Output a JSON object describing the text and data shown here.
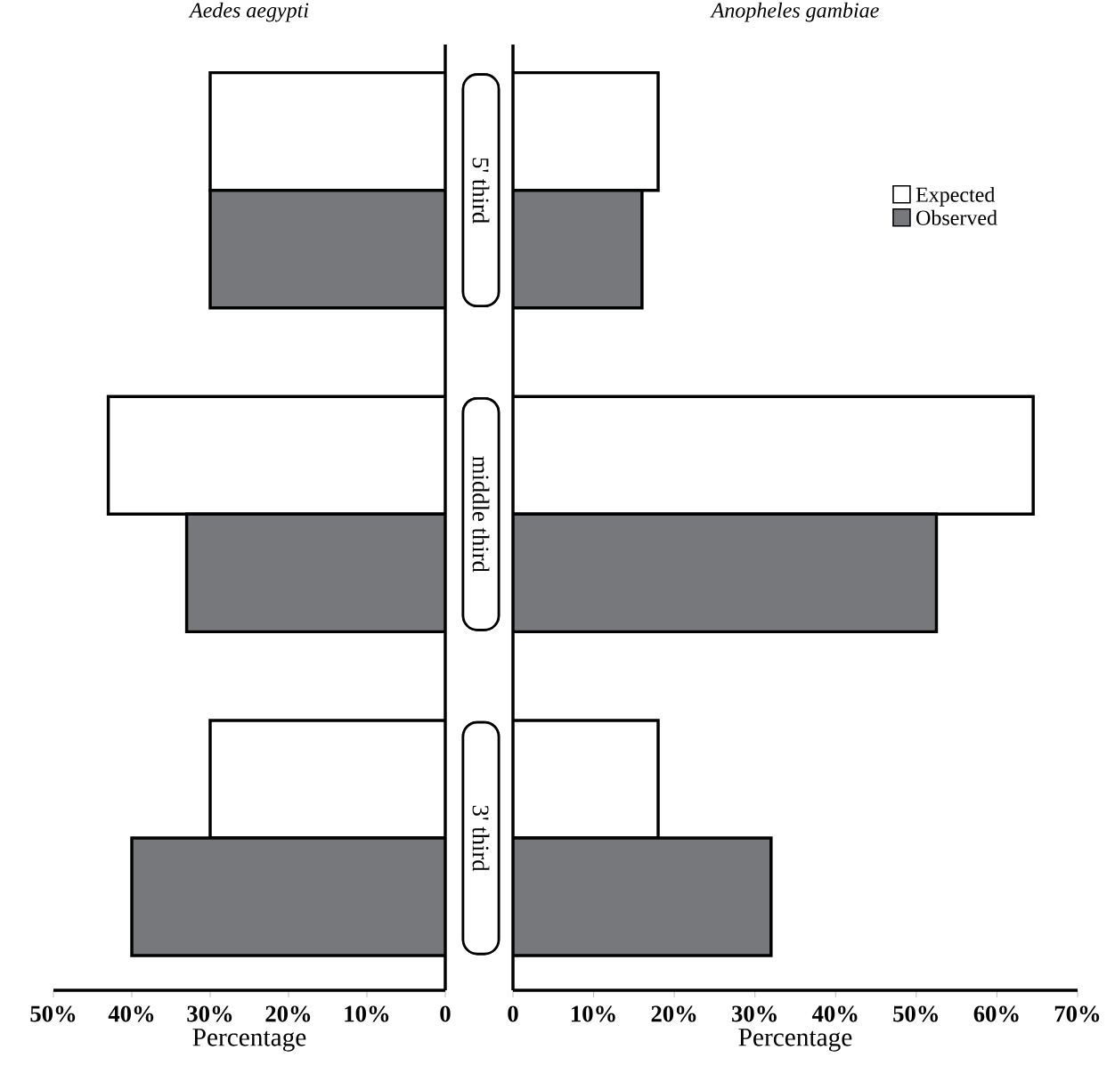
{
  "chart_data": [
    {
      "type": "bar",
      "orientation": "horizontal",
      "title": "Aedes aegypti",
      "xlabel": "Percentage",
      "categories": [
        "5' third",
        "middle third",
        "3' third"
      ],
      "series": [
        {
          "color": "#ffffff",
          "values": [
            30,
            43,
            30
          ]
        },
        {
          "color": "#77787b",
          "values": [
            30,
            33,
            40
          ]
        }
      ],
      "xlim": [
        50,
        0
      ],
      "xticks": [
        {
          "value": 50,
          "label": "50%"
        },
        {
          "value": 40,
          "label": "40%"
        },
        {
          "value": 30,
          "label": "30%"
        },
        {
          "value": 20,
          "label": "20%"
        },
        {
          "value": 10,
          "label": "10%"
        },
        0
      ]
    },
    {
      "type": "bar",
      "orientation": "horizontal",
      "title": "Anopheles gambiae",
      "xlabel": "Percentage",
      "categories": [
        null,
        null,
        null
      ],
      "series": [
        {
          "name": "Expected",
          "color": "#ffffff",
          "values": [
            18,
            64.5,
            18
          ]
        },
        {
          "name": "Observed",
          "color": "#77787b",
          "values": [
            16,
            52.5,
            32
          ]
        }
      ],
      "xlim": [
        0,
        70
      ],
      "xticks": [
        0,
        {
          "value": 10,
          "label": "10%"
        },
        {
          "value": 20,
          "label": "20%"
        },
        {
          "value": 30,
          "label": "30%"
        },
        {
          "value": 40,
          "label": "40%"
        },
        {
          "value": 50,
          "label": "50%"
        },
        {
          "value": 60,
          "label": "60%"
        },
        {
          "value": 70,
          "label": "70%"
        }
      ],
      "legend": "top right"
    }
  ]
}
